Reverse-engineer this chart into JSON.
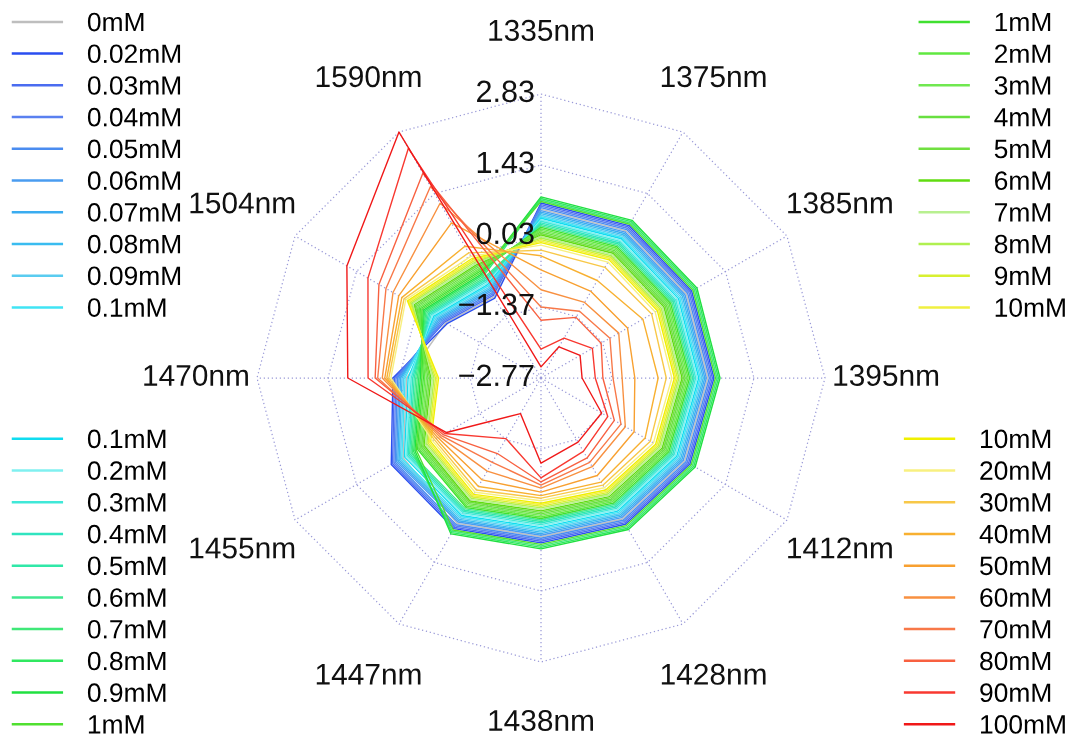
{
  "chart_data": {
    "type": "radar",
    "categories": [
      "1335nm",
      "1375nm",
      "1385nm",
      "1395nm",
      "1412nm",
      "1428nm",
      "1438nm",
      "1447nm",
      "1455nm",
      "1470nm",
      "1504nm",
      "1590nm"
    ],
    "ylim": [
      -2.77,
      2.83
    ],
    "yticks": [
      -2.77,
      -1.37,
      0.03,
      1.43,
      2.83
    ],
    "grid": true,
    "line_style": "solid",
    "legend": [
      "top left",
      "bottom left",
      "top right",
      "bottom right"
    ],
    "series": [
      {
        "name": "0mM",
        "color": "#bebebe",
        "values": [
          0.56,
          0.58,
          0.54,
          0.52,
          0.5,
          0.44,
          0.36,
          0.54,
          0.37,
          -0.12,
          -0.6,
          -0.92
        ]
      },
      {
        "name": "0.02mM",
        "color": "#2a4ef0",
        "values": [
          0.68,
          0.7,
          0.66,
          0.64,
          0.62,
          0.56,
          0.48,
          0.66,
          0.64,
          0.15,
          -0.63,
          -0.95
        ]
      },
      {
        "name": "0.03mM",
        "color": "#4a6cf0",
        "values": [
          0.65,
          0.67,
          0.63,
          0.61,
          0.59,
          0.53,
          0.45,
          0.63,
          0.61,
          0.12,
          -0.57,
          -0.89
        ]
      },
      {
        "name": "0.04mM",
        "color": "#5a80f0",
        "values": [
          0.62,
          0.64,
          0.6,
          0.58,
          0.56,
          0.5,
          0.42,
          0.6,
          0.58,
          0.09,
          -0.54,
          -0.86
        ]
      },
      {
        "name": "0.05mM",
        "color": "#4a8cf0",
        "values": [
          0.59,
          0.61,
          0.57,
          0.55,
          0.53,
          0.47,
          0.39,
          0.57,
          0.55,
          0.06,
          -0.51,
          -0.83
        ]
      },
      {
        "name": "0.06mM",
        "color": "#4a9cf0",
        "values": [
          0.53,
          0.55,
          0.51,
          0.49,
          0.47,
          0.41,
          0.33,
          0.51,
          0.52,
          0.03,
          -0.48,
          -0.8
        ]
      },
      {
        "name": "0.07mM",
        "color": "#3aacf0",
        "values": [
          0.5,
          0.52,
          0.48,
          0.46,
          0.44,
          0.38,
          0.3,
          0.48,
          0.49,
          0.0,
          -0.45,
          -0.77
        ]
      },
      {
        "name": "0.08mM",
        "color": "#3abcf0",
        "values": [
          0.47,
          0.49,
          0.45,
          0.43,
          0.41,
          0.35,
          0.27,
          0.45,
          0.46,
          -0.03,
          -0.42,
          -0.74
        ]
      },
      {
        "name": "0.09mM",
        "color": "#5accf0",
        "values": [
          0.44,
          0.46,
          0.42,
          0.4,
          0.38,
          0.32,
          0.24,
          0.42,
          0.43,
          -0.06,
          -0.39,
          -0.71
        ]
      },
      {
        "name": "0.1mM",
        "color": "#40e4f4",
        "values": [
          0.41,
          0.43,
          0.39,
          0.37,
          0.35,
          0.29,
          0.21,
          0.39,
          0.4,
          -0.09,
          -0.36,
          -0.68
        ]
      },
      {
        "name": "0.1mM",
        "color": "#10dcf0",
        "values": [
          0.38,
          0.4,
          0.36,
          0.34,
          0.32,
          0.26,
          0.18,
          0.36,
          0.34,
          -0.15,
          -0.33,
          -0.65
        ]
      },
      {
        "name": "0.2mM",
        "color": "#80f0f0",
        "values": [
          0.35,
          0.37,
          0.33,
          0.31,
          0.29,
          0.23,
          0.15,
          0.33,
          0.31,
          -0.18,
          -0.3,
          -0.62
        ]
      },
      {
        "name": "0.3mM",
        "color": "#40e8d8",
        "values": [
          0.32,
          0.34,
          0.3,
          0.28,
          0.26,
          0.2,
          0.12,
          0.3,
          0.28,
          -0.21,
          -0.27,
          -0.59
        ]
      },
      {
        "name": "0.4mM",
        "color": "#30e4c0",
        "values": [
          0.29,
          0.31,
          0.27,
          0.25,
          0.23,
          0.17,
          0.09,
          0.27,
          0.25,
          -0.24,
          -0.24,
          -0.56
        ]
      },
      {
        "name": "0.5mM",
        "color": "#30e8a8",
        "values": [
          0.26,
          0.28,
          0.24,
          0.22,
          0.2,
          0.14,
          0.06,
          0.24,
          0.22,
          -0.27,
          -0.21,
          -0.53
        ]
      },
      {
        "name": "0.6mM",
        "color": "#40e890",
        "values": [
          0.23,
          0.25,
          0.21,
          0.19,
          0.17,
          0.11,
          0.03,
          0.21,
          0.19,
          -0.3,
          -0.18,
          -0.5
        ]
      },
      {
        "name": "0.7mM",
        "color": "#40e878",
        "values": [
          0.74,
          0.76,
          0.72,
          0.7,
          0.68,
          0.62,
          0.54,
          0.72,
          0.16,
          -0.33,
          -0.15,
          -0.47
        ]
      },
      {
        "name": "0.8mM",
        "color": "#30e860",
        "values": [
          0.77,
          0.79,
          0.75,
          0.73,
          0.71,
          0.65,
          0.57,
          0.75,
          0.13,
          -0.36,
          -0.12,
          -0.44
        ]
      },
      {
        "name": "0.9mM",
        "color": "#20e040",
        "values": [
          0.8,
          0.82,
          0.78,
          0.76,
          0.74,
          0.68,
          0.6,
          0.78,
          0.1,
          -0.39,
          -0.09,
          -0.41
        ]
      },
      {
        "name": "1mM",
        "color": "#50e030",
        "values": [
          0.71,
          0.73,
          0.69,
          0.67,
          0.65,
          0.59,
          0.51,
          0.69,
          0.07,
          -0.42,
          -0.06,
          -0.38
        ]
      },
      {
        "name": "1mM",
        "color": "#40e030",
        "values": [
          0.2,
          0.22,
          0.18,
          0.16,
          0.14,
          0.08,
          0.0,
          0.18,
          0.04,
          -0.45,
          -0.03,
          -0.35
        ]
      },
      {
        "name": "2mM",
        "color": "#60e840",
        "values": [
          0.17,
          0.19,
          0.15,
          0.13,
          0.11,
          0.05,
          -0.03,
          0.15,
          0.01,
          -0.48,
          0.0,
          -0.32
        ]
      },
      {
        "name": "3mM",
        "color": "#70e850",
        "values": [
          0.14,
          0.16,
          0.12,
          0.1,
          0.08,
          0.02,
          -0.06,
          0.12,
          -0.02,
          -0.51,
          0.03,
          -0.29
        ]
      },
      {
        "name": "4mM",
        "color": "#68e040",
        "values": [
          0.11,
          0.13,
          0.09,
          0.07,
          0.05,
          -0.01,
          -0.09,
          0.09,
          -0.05,
          -0.54,
          0.06,
          -0.26
        ]
      },
      {
        "name": "5mM",
        "color": "#70e040",
        "values": [
          0.08,
          0.1,
          0.06,
          0.04,
          0.02,
          -0.04,
          -0.12,
          0.06,
          -0.08,
          -0.57,
          0.09,
          -0.23
        ]
      },
      {
        "name": "6mM",
        "color": "#60dc10",
        "values": [
          0.05,
          0.07,
          0.03,
          0.01,
          -0.01,
          -0.07,
          -0.15,
          0.03,
          -0.11,
          -0.6,
          0.12,
          -0.2
        ]
      },
      {
        "name": "7mM",
        "color": "#b8f090",
        "values": [
          0.02,
          0.04,
          0.0,
          -0.02,
          -0.04,
          -0.1,
          -0.18,
          0.0,
          -0.14,
          -0.63,
          0.15,
          -0.17
        ]
      },
      {
        "name": "8mM",
        "color": "#b0f050",
        "values": [
          -0.01,
          0.01,
          -0.03,
          -0.05,
          -0.07,
          -0.13,
          -0.21,
          -0.03,
          -0.17,
          -0.66,
          0.18,
          -0.14
        ]
      },
      {
        "name": "9mM",
        "color": "#d8f030",
        "values": [
          -0.04,
          -0.02,
          -0.06,
          -0.08,
          -0.1,
          -0.16,
          -0.24,
          -0.06,
          -0.2,
          -0.69,
          0.21,
          -0.11
        ]
      },
      {
        "name": "10mM",
        "color": "#f0f040",
        "values": [
          -0.07,
          -0.05,
          -0.09,
          -0.11,
          -0.13,
          -0.19,
          -0.27,
          -0.09,
          -0.23,
          -0.72,
          0.24,
          -0.08
        ]
      },
      {
        "name": "10mM",
        "color": "#f0f000",
        "values": [
          -0.1,
          -0.08,
          -0.12,
          -0.14,
          -0.16,
          -0.22,
          -0.3,
          -0.12,
          -0.26,
          -0.75,
          0.27,
          -0.05
        ]
      },
      {
        "name": "20mM",
        "color": "#f8f080",
        "values": [
          -0.15,
          -0.13,
          -0.17,
          -0.19,
          -0.21,
          -0.27,
          -0.35,
          -0.17,
          -0.3,
          0.19,
          0.31,
          0.0
        ]
      },
      {
        "name": "30mM",
        "color": "#f8c848",
        "values": [
          -0.25,
          -0.25,
          -0.25,
          -0.3,
          -0.28,
          -0.33,
          -0.4,
          -0.22,
          -0.34,
          0.23,
          0.35,
          0.08
        ]
      },
      {
        "name": "40mM",
        "color": "#f8b030",
        "values": [
          -0.36,
          -0.55,
          -0.45,
          -0.46,
          -0.4,
          -0.4,
          -0.45,
          -0.3,
          -0.38,
          0.27,
          0.4,
          0.23
        ]
      },
      {
        "name": "50mM",
        "color": "#f8a030",
        "values": [
          -0.64,
          -0.8,
          -0.8,
          -0.92,
          -0.65,
          -0.55,
          -0.52,
          -0.45,
          -0.42,
          0.31,
          0.47,
          0.76
        ]
      },
      {
        "name": "60mM",
        "color": "#f89040",
        "values": [
          -1.03,
          -1.05,
          -1.0,
          -1.17,
          -0.85,
          -0.75,
          -0.6,
          -0.65,
          -0.46,
          0.36,
          0.6,
          1.21
        ]
      },
      {
        "name": "70mM",
        "color": "#f87848",
        "values": [
          -1.37,
          -1.25,
          -1.2,
          -1.35,
          -0.95,
          -0.85,
          -0.66,
          -0.85,
          -0.5,
          0.45,
          0.76,
          1.59
        ]
      },
      {
        "name": "80mM",
        "color": "#f86040",
        "values": [
          -1.63,
          -1.39,
          -1.4,
          -1.55,
          -1.1,
          -0.95,
          -0.72,
          -1.05,
          -0.54,
          0.5,
          0.92,
          1.89
        ]
      },
      {
        "name": "90mM",
        "color": "#f83830",
        "values": [
          -2.2,
          -1.86,
          -1.6,
          -1.7,
          -1.25,
          -1.1,
          -0.8,
          -1.39,
          -0.58,
          0.64,
          1.17,
          2.46
        ]
      },
      {
        "name": "100mM",
        "color": "#f01818",
        "values": [
          -2.55,
          -2.06,
          -1.88,
          -1.96,
          -1.39,
          -1.31,
          -1.09,
          -1.96,
          -0.62,
          1.04,
          1.65,
          2.83
        ]
      }
    ]
  }
}
